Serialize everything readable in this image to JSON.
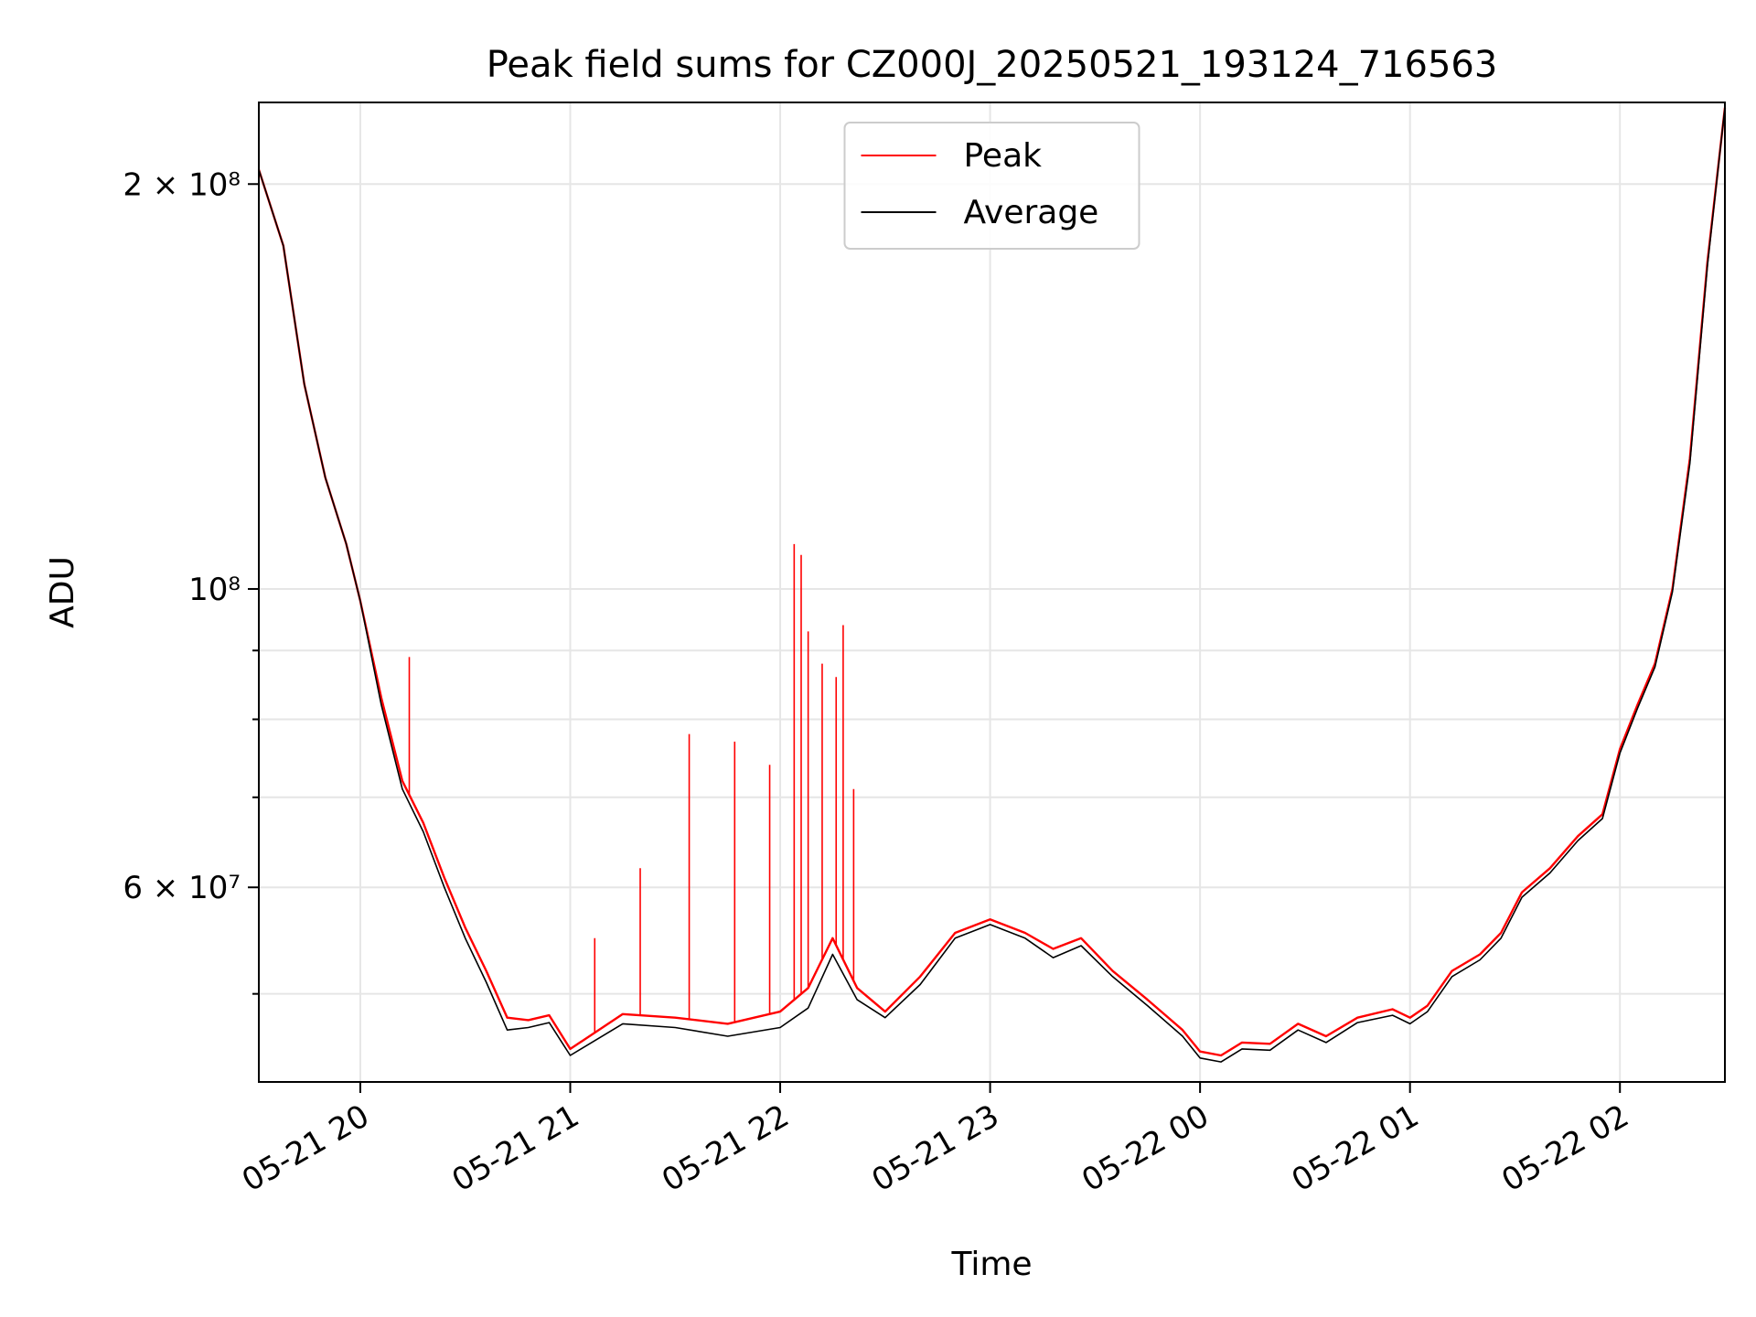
{
  "chart_data": {
    "type": "line",
    "title": "Peak field sums for CZ000J_20250521_193124_716563",
    "xlabel": "Time",
    "ylabel": "ADU",
    "yscale": "log",
    "xlim": [
      "2025-05-21 19:31",
      "2025-05-22 02:30"
    ],
    "ylim": [
      43000000,
      230000000
    ],
    "grid": true,
    "legend_position": "upper center",
    "x_ticks": [
      {
        "time": "2025-05-21 20:00",
        "label": "05-21 20"
      },
      {
        "time": "2025-05-21 21:00",
        "label": "05-21 21"
      },
      {
        "time": "2025-05-21 22:00",
        "label": "05-21 22"
      },
      {
        "time": "2025-05-21 23:00",
        "label": "05-21 23"
      },
      {
        "time": "2025-05-22 00:00",
        "label": "05-22 00"
      },
      {
        "time": "2025-05-22 01:00",
        "label": "05-22 01"
      },
      {
        "time": "2025-05-22 02:00",
        "label": "05-22 02"
      }
    ],
    "y_ticks": [
      {
        "value": 60000000,
        "label": "6 × 10⁷"
      },
      {
        "value": 100000000,
        "label": "10⁸"
      },
      {
        "value": 200000000,
        "label": "2 × 10⁸"
      }
    ],
    "y_minor_ticks": [
      50000000,
      70000000,
      80000000,
      90000000
    ],
    "series": [
      {
        "name": "Peak",
        "color": "#ff0000",
        "x": [
          "2025-05-21 19:31",
          "2025-05-21 19:38",
          "2025-05-21 19:44",
          "2025-05-21 19:50",
          "2025-05-21 19:56",
          "2025-05-21 20:00",
          "2025-05-21 20:06",
          "2025-05-21 20:12",
          "2025-05-21 20:18",
          "2025-05-21 20:24",
          "2025-05-21 20:30",
          "2025-05-21 20:36",
          "2025-05-21 20:42",
          "2025-05-21 20:48",
          "2025-05-21 20:54",
          "2025-05-21 21:00",
          "2025-05-21 21:15",
          "2025-05-21 21:30",
          "2025-05-21 21:45",
          "2025-05-21 22:00",
          "2025-05-21 22:08",
          "2025-05-21 22:15",
          "2025-05-21 22:22",
          "2025-05-21 22:30",
          "2025-05-21 22:40",
          "2025-05-21 22:50",
          "2025-05-21 23:00",
          "2025-05-21 23:10",
          "2025-05-21 23:18",
          "2025-05-21 23:26",
          "2025-05-21 23:35",
          "2025-05-21 23:45",
          "2025-05-21 23:55",
          "2025-05-22 00:00",
          "2025-05-22 00:06",
          "2025-05-22 00:12",
          "2025-05-22 00:20",
          "2025-05-22 00:28",
          "2025-05-22 00:36",
          "2025-05-22 00:45",
          "2025-05-22 00:55",
          "2025-05-22 01:00",
          "2025-05-22 01:05",
          "2025-05-22 01:12",
          "2025-05-22 01:20",
          "2025-05-22 01:26",
          "2025-05-22 01:32",
          "2025-05-22 01:40",
          "2025-05-22 01:48",
          "2025-05-22 01:55",
          "2025-05-22 02:00",
          "2025-05-22 02:05",
          "2025-05-22 02:10",
          "2025-05-22 02:15",
          "2025-05-22 02:20",
          "2025-05-22 02:25",
          "2025-05-22 02:30"
        ],
        "y": [
          205000000,
          180000000,
          142000000,
          121000000,
          108000000,
          98000000,
          83000000,
          72000000,
          67000000,
          61000000,
          56000000,
          52000000,
          48000000,
          47800000,
          48200000,
          45500000,
          48300000,
          48000000,
          47500000,
          48500000,
          50500000,
          55000000,
          50500000,
          48500000,
          51500000,
          55500000,
          56800000,
          55500000,
          54000000,
          55000000,
          52000000,
          49500000,
          47000000,
          45300000,
          45000000,
          46000000,
          45900000,
          47500000,
          46500000,
          48000000,
          48700000,
          48000000,
          49000000,
          52000000,
          53500000,
          55500000,
          59500000,
          62000000,
          65500000,
          68000000,
          76000000,
          82000000,
          88000000,
          100000000,
          125000000,
          175000000,
          228000000
        ],
        "spikes": [
          {
            "time": "2025-05-21 20:14",
            "value": 89000000
          },
          {
            "time": "2025-05-21 21:07",
            "value": 55000000
          },
          {
            "time": "2025-05-21 21:20",
            "value": 62000000
          },
          {
            "time": "2025-05-21 21:34",
            "value": 78000000
          },
          {
            "time": "2025-05-21 21:47",
            "value": 77000000
          },
          {
            "time": "2025-05-21 21:57",
            "value": 74000000
          },
          {
            "time": "2025-05-21 22:04",
            "value": 108000000
          },
          {
            "time": "2025-05-21 22:06",
            "value": 106000000
          },
          {
            "time": "2025-05-21 22:08",
            "value": 93000000
          },
          {
            "time": "2025-05-21 22:12",
            "value": 88000000
          },
          {
            "time": "2025-05-21 22:16",
            "value": 86000000
          },
          {
            "time": "2025-05-21 22:18",
            "value": 94000000
          },
          {
            "time": "2025-05-21 22:21",
            "value": 71000000
          }
        ]
      },
      {
        "name": "Average",
        "color": "#000000",
        "x": [
          "2025-05-21 19:31",
          "2025-05-21 19:38",
          "2025-05-21 19:44",
          "2025-05-21 19:50",
          "2025-05-21 19:56",
          "2025-05-21 20:00",
          "2025-05-21 20:06",
          "2025-05-21 20:12",
          "2025-05-21 20:18",
          "2025-05-21 20:24",
          "2025-05-21 20:30",
          "2025-05-21 20:36",
          "2025-05-21 20:42",
          "2025-05-21 20:48",
          "2025-05-21 20:54",
          "2025-05-21 21:00",
          "2025-05-21 21:15",
          "2025-05-21 21:30",
          "2025-05-21 21:45",
          "2025-05-21 22:00",
          "2025-05-21 22:08",
          "2025-05-21 22:15",
          "2025-05-21 22:22",
          "2025-05-21 22:30",
          "2025-05-21 22:40",
          "2025-05-21 22:50",
          "2025-05-21 23:00",
          "2025-05-21 23:10",
          "2025-05-21 23:18",
          "2025-05-21 23:26",
          "2025-05-21 23:35",
          "2025-05-21 23:45",
          "2025-05-21 23:55",
          "2025-05-22 00:00",
          "2025-05-22 00:06",
          "2025-05-22 00:12",
          "2025-05-22 00:20",
          "2025-05-22 00:28",
          "2025-05-22 00:36",
          "2025-05-22 00:45",
          "2025-05-22 00:55",
          "2025-05-22 01:00",
          "2025-05-22 01:05",
          "2025-05-22 01:12",
          "2025-05-22 01:20",
          "2025-05-22 01:26",
          "2025-05-22 01:32",
          "2025-05-22 01:40",
          "2025-05-22 01:48",
          "2025-05-22 01:55",
          "2025-05-22 02:00",
          "2025-05-22 02:05",
          "2025-05-22 02:10",
          "2025-05-22 02:15",
          "2025-05-22 02:20",
          "2025-05-22 02:25",
          "2025-05-22 02:30"
        ],
        "y": [
          205000000,
          180000000,
          142000000,
          121000000,
          108000000,
          98000000,
          82000000,
          71000000,
          66000000,
          60000000,
          55000000,
          51000000,
          47000000,
          47200000,
          47600000,
          45000000,
          47500000,
          47200000,
          46500000,
          47200000,
          48800000,
          53500000,
          49500000,
          48000000,
          50800000,
          55000000,
          56300000,
          55000000,
          53200000,
          54300000,
          51500000,
          49000000,
          46500000,
          44800000,
          44500000,
          45500000,
          45400000,
          47000000,
          46000000,
          47600000,
          48200000,
          47500000,
          48500000,
          51500000,
          53000000,
          55000000,
          59000000,
          61500000,
          65000000,
          67500000,
          75500000,
          81500000,
          87500000,
          99500000,
          124000000,
          174000000,
          228000000
        ]
      }
    ]
  }
}
